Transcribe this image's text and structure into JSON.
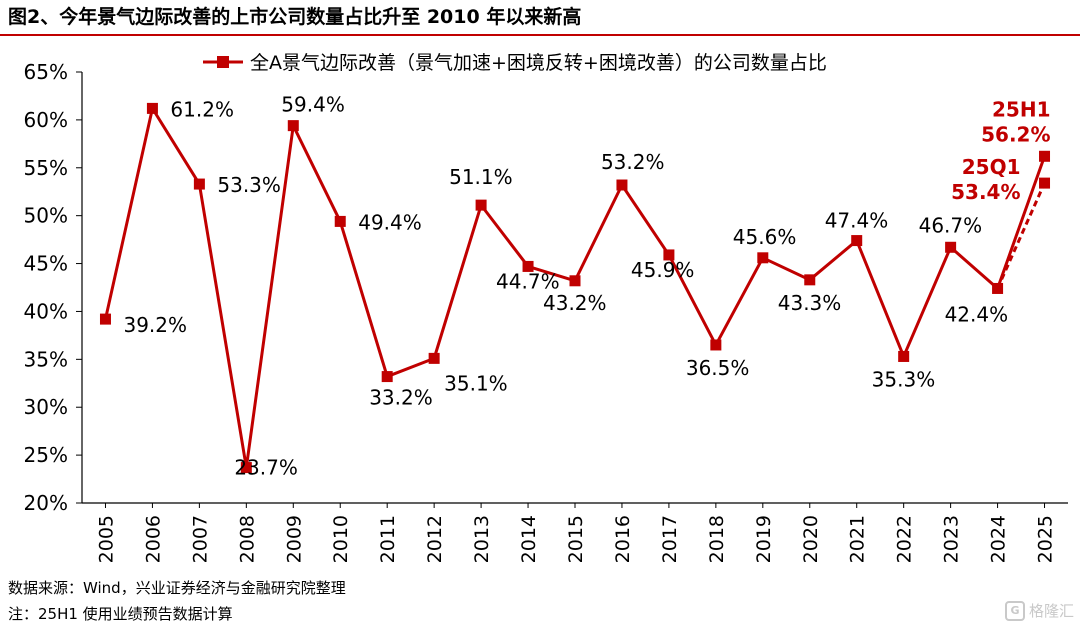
{
  "figure": {
    "title": "图2、今年景气边际改善的上市公司数量占比升至 2010 年以来新高",
    "source": "数据来源：Wind，兴业证券经济与金融研究院整理",
    "note": "注：25H1 使用业绩预告数据计算",
    "watermark": "格隆汇",
    "accent_color": "#c00000"
  },
  "chart_data": {
    "type": "line",
    "categories": [
      "2005",
      "2006",
      "2007",
      "2008",
      "2009",
      "2010",
      "2011",
      "2012",
      "2013",
      "2014",
      "2015",
      "2016",
      "2017",
      "2018",
      "2019",
      "2020",
      "2021",
      "2022",
      "2023",
      "2024",
      "2025"
    ],
    "series": [
      {
        "name": "全A景气边际改善（景气加速+困境反转+困境改善）的公司数量占比",
        "color": "#c00000",
        "values": [
          39.2,
          61.2,
          53.3,
          23.7,
          59.4,
          49.4,
          33.2,
          35.1,
          51.1,
          44.7,
          43.2,
          53.2,
          45.9,
          36.5,
          45.6,
          43.3,
          47.4,
          35.3,
          46.7,
          42.4,
          56.2
        ],
        "labels": [
          "39.2%",
          "61.2%",
          "53.3%",
          "23.7%",
          "59.4%",
          "49.4%",
          "33.2%",
          "35.1%",
          "51.1%",
          "44.7%",
          "43.2%",
          "53.2%",
          "45.9%",
          "36.5%",
          "45.6%",
          "43.3%",
          "47.4%",
          "35.3%",
          "46.7%",
          "42.4%",
          ""
        ]
      }
    ],
    "extra_points": [
      {
        "from_category": "2024",
        "from_value": 42.4,
        "category": "2025",
        "value": 53.4,
        "line_style": "dashed",
        "label_top": "25Q1",
        "label_bottom": "53.4%"
      },
      {
        "category": "2025",
        "value": 56.2,
        "label_top": "25H1",
        "label_bottom": "56.2%"
      }
    ],
    "y_ticks": [
      "20%",
      "25%",
      "30%",
      "35%",
      "40%",
      "45%",
      "50%",
      "55%",
      "60%",
      "65%"
    ],
    "ylim": [
      20,
      65
    ],
    "grid": false,
    "legend_position": "top-center"
  }
}
